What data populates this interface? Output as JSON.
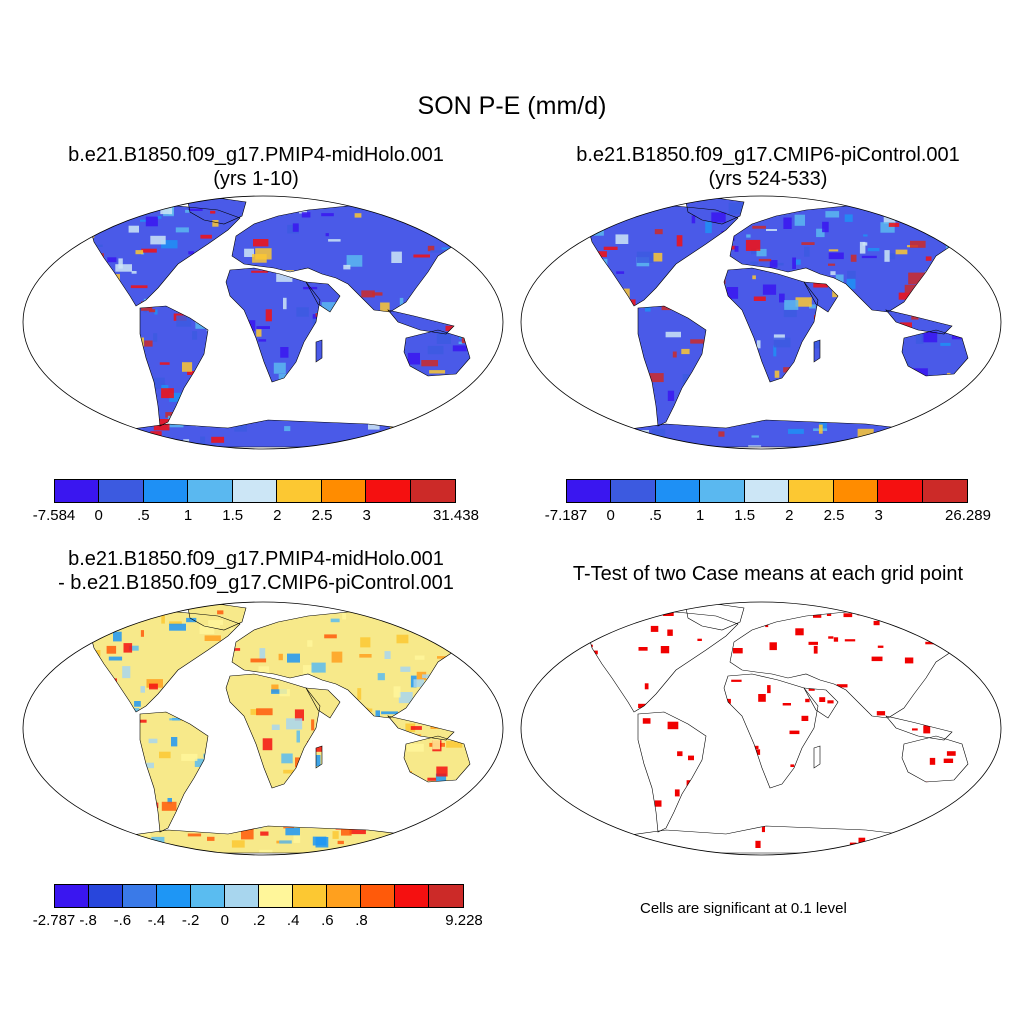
{
  "main_title": "SON P-E (mm/d)",
  "panels": [
    {
      "title_line1": "b.e21.B1850.f09_g17.PMIP4-midHolo.001",
      "title_line2": "(yrs 1-10)",
      "base": "#4a5ae8"
    },
    {
      "title_line1": "b.e21.B1850.f09_g17.CMIP6-piControl.001",
      "title_line2": "(yrs 524-533)",
      "base": "#4a5ae8"
    },
    {
      "title_line1": "b.e21.B1850.f09_g17.PMIP4-midHolo.001",
      "title_line2": "- b.e21.B1850.f09_g17.CMIP6-piControl.001",
      "base": "#f7e98a"
    },
    {
      "title_line1": "T-Test of two Case means at each grid point",
      "title_line2": "",
      "base": "#ffffff"
    }
  ],
  "colorbars": [
    {
      "colors": [
        "#3a16f0",
        "#3c5ae0",
        "#1e90f5",
        "#5ab8f0",
        "#cce6f6",
        "#fcc832",
        "#ff8c00",
        "#f51010",
        "#cc2a28"
      ],
      "labels": [
        "-7.584",
        "0",
        ".5",
        "1",
        "1.5",
        "2",
        "2.5",
        "3",
        "31.438"
      ]
    },
    {
      "colors": [
        "#3a16f0",
        "#3c5ae0",
        "#1e90f5",
        "#5ab8f0",
        "#cce6f6",
        "#fcc832",
        "#ff8c00",
        "#f51010",
        "#cc2a28"
      ],
      "labels": [
        "-7.187",
        "0",
        ".5",
        "1",
        "1.5",
        "2",
        "2.5",
        "3",
        "26.289"
      ]
    },
    {
      "colors": [
        "#3a16f0",
        "#2846dc",
        "#3a7ae8",
        "#1e96f5",
        "#5abcf0",
        "#a8d6ee",
        "#fff69a",
        "#fcc832",
        "#ffa01e",
        "#ff5a0a",
        "#f51010",
        "#cc2a28"
      ],
      "labels": [
        "-2.787",
        "-.8",
        "-.6",
        "-.4",
        "-.2",
        "0",
        ".2",
        ".4",
        ".6",
        ".8",
        "9.228"
      ]
    }
  ],
  "ttest_note": "Cells are significant at 0.1 level",
  "colors": {
    "map_outline": "#000000",
    "significant": "#f00000"
  }
}
